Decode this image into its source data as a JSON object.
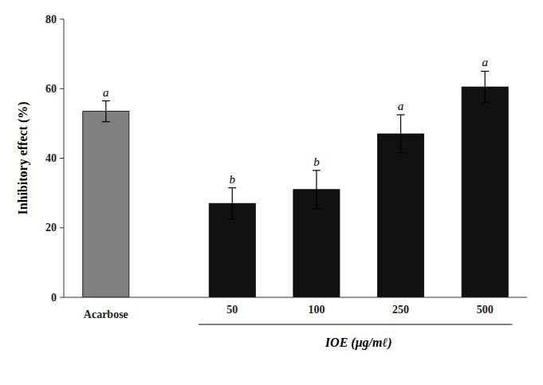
{
  "chart_data": {
    "type": "bar",
    "categories": [
      "Acarbose",
      "50",
      "100",
      "250",
      "500"
    ],
    "values": [
      53.5,
      27.0,
      31.0,
      47.0,
      60.5
    ],
    "errors": [
      3.0,
      4.5,
      5.5,
      5.5,
      4.5
    ],
    "colors": [
      "#808080",
      "#111111",
      "#111111",
      "#111111",
      "#111111"
    ],
    "annotations": [
      "a",
      "b",
      "b",
      "a",
      "a"
    ],
    "ylabel": "Inhibitory effect (%)",
    "xlabel": "IOE (μg/mℓ)",
    "ylim": [
      0,
      80
    ],
    "yticks": [
      0,
      20,
      40,
      60,
      80
    ],
    "grid": false
  }
}
